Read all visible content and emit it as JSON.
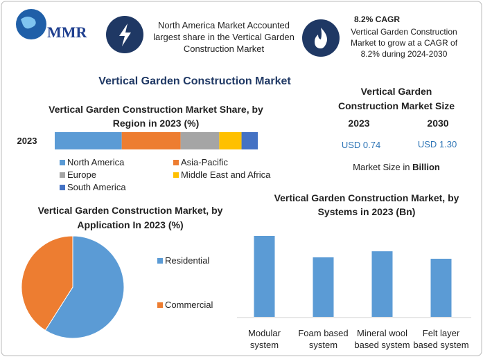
{
  "header": {
    "logo": "MMR",
    "info_text": "North America Market Accounted largest share in the Vertical Garden Construction Market",
    "cagr_title": "8.2% CAGR",
    "cagr_text": "Vertical Garden Construction Market to grow at a CAGR of 8.2% during 2024-2030"
  },
  "title": "Vertical Garden Construction Market",
  "market_size": {
    "title": "Vertical Garden Construction Market Size",
    "years": [
      "2023",
      "2030"
    ],
    "values": [
      "USD 0.74",
      "USD 1.30"
    ],
    "note": "Market Size in",
    "note_unit": "Billion"
  },
  "chart_data": [
    {
      "type": "stacked-bar",
      "title": "Vertical Garden Construction Market Share, by Region in 2023 (%)",
      "categories": [
        "2023"
      ],
      "series": [
        {
          "name": "North America",
          "color": "#5b9bd5",
          "values": [
            33
          ]
        },
        {
          "name": "Asia-Pacific",
          "color": "#ed7d31",
          "values": [
            29
          ]
        },
        {
          "name": "Europe",
          "color": "#a5a5a5",
          "values": [
            19
          ]
        },
        {
          "name": "Middle East and Africa",
          "color": "#ffc000",
          "values": [
            11
          ]
        },
        {
          "name": "South America",
          "color": "#4472c4",
          "values": [
            8
          ]
        }
      ]
    },
    {
      "type": "pie",
      "title": "Vertical Garden Construction Market, by Application In 2023 (%)",
      "categories": [
        "Residential",
        "Commercial"
      ],
      "values": [
        59,
        41
      ],
      "colors": [
        "#5b9bd5",
        "#ed7d31"
      ]
    },
    {
      "type": "bar",
      "title": "Vertical Garden Construction Market, by Systems in 2023 (Bn)",
      "categories": [
        "Modular system",
        "Foam based system",
        "Mineral wool based system",
        "Felt layer based system"
      ],
      "values": [
        0.227,
        0.167,
        0.184,
        0.163
      ],
      "color": "#5b9bd5"
    }
  ]
}
